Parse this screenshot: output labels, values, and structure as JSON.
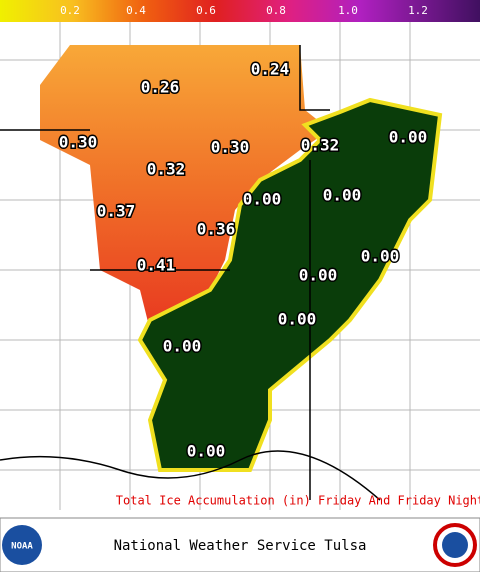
{
  "colorbar": {
    "labels": [
      "0.2",
      "0.4",
      "0.6",
      "0.8",
      "1.0",
      "1.2"
    ]
  },
  "map": {
    "labels": [
      "0.26",
      "0.24",
      "0.30",
      "0.32",
      "0.30",
      "0.32",
      "0.00",
      "0.00",
      "0.00",
      "0.37",
      "0.36",
      "0.00",
      "0.00",
      "0.41",
      "0.00",
      "0.00",
      "0.00"
    ]
  },
  "caption": "Total Ice Accumulation (in)  Friday And Friday Night",
  "footer": {
    "title": "National Weather Service Tulsa",
    "left_logo": "NOAA"
  }
}
